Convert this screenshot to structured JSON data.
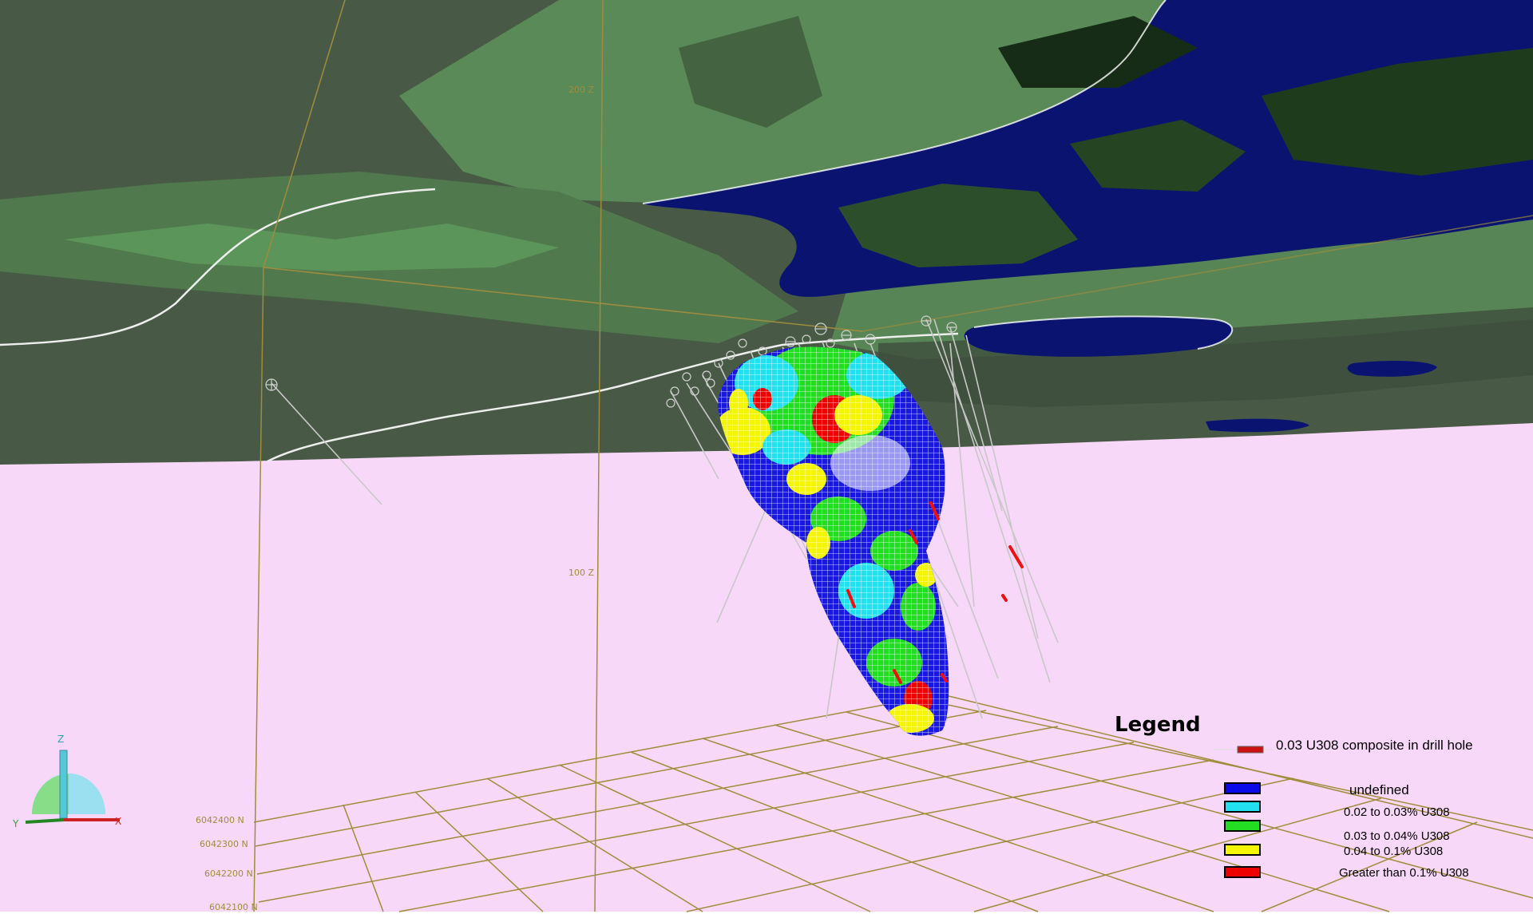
{
  "scene": {
    "elevation_labels": [
      "200 Z",
      "100 Z"
    ],
    "northing_labels": [
      "6042400 N",
      "6042300 N",
      "6042200 N",
      "6042100 N"
    ]
  },
  "legend": {
    "title": "Legend",
    "line_item": {
      "label": "0.03 U308 composite in drill hole",
      "color": "#cc1111"
    },
    "items": [
      {
        "label": "undefined",
        "color": "#0a0ae8"
      },
      {
        "label": "0.02 to 0.03% U308",
        "color": "#22e0f0"
      },
      {
        "label": "0.03 to 0.04% U308",
        "color": "#22dd22"
      },
      {
        "label": "0.04 to 0.1% U308",
        "color": "#f5f500"
      },
      {
        "label": "Greater than 0.1% U308",
        "color": "#ee0000"
      }
    ]
  },
  "axis_triad": {
    "z": "Z",
    "y": "Y",
    "x": "X"
  },
  "colors": {
    "background": "#f8d8f8",
    "surface_dark": "#4a5a48",
    "surface_green": "#5a8858",
    "water": "#0a1470",
    "grid": "#a08c3c"
  }
}
